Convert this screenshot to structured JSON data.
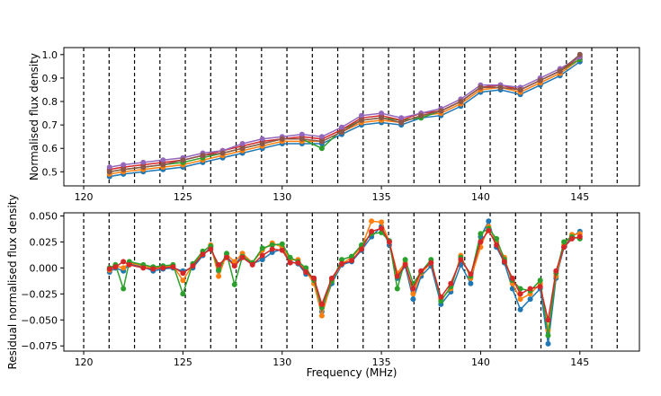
{
  "chart_data": [
    {
      "type": "line",
      "ylabel": "Normalised flux density",
      "xlim": [
        119,
        148
      ],
      "ylim": [
        0.44,
        1.03
      ],
      "x_ticks": [
        120,
        125,
        130,
        135,
        140,
        145
      ],
      "x_tick_labels": [
        "120",
        "125",
        "130",
        "135",
        "140",
        "145"
      ],
      "y_ticks": [
        0.5,
        0.6,
        0.7,
        0.8,
        0.9,
        1.0
      ],
      "y_tick_labels": [
        "0.5",
        "0.6",
        "0.7",
        "0.8",
        "0.9",
        "1.0"
      ],
      "vlines": [
        120,
        121.28,
        122.56,
        123.84,
        125.12,
        126.4,
        127.68,
        128.96,
        130.24,
        131.52,
        132.8,
        134.08,
        135.36,
        136.64,
        137.92,
        139.2,
        140.48,
        141.76,
        143.04,
        144.32,
        145.6,
        146.88
      ],
      "grid": false,
      "series": [
        {
          "color": "#1f77b4",
          "x": [
            121.3,
            122.0,
            123.0,
            124.0,
            125.0,
            126.0,
            127.0,
            128.0,
            129.0,
            130.0,
            131.0,
            132.0,
            133.0,
            134.0,
            135.0,
            136.0,
            137.0,
            138.0,
            139.0,
            140.0,
            141.0,
            142.0,
            143.0,
            144.0,
            145.0
          ],
          "y": [
            0.48,
            0.49,
            0.5,
            0.51,
            0.52,
            0.54,
            0.56,
            0.58,
            0.6,
            0.62,
            0.62,
            0.62,
            0.66,
            0.7,
            0.71,
            0.7,
            0.73,
            0.74,
            0.78,
            0.84,
            0.85,
            0.83,
            0.87,
            0.91,
            0.97
          ]
        },
        {
          "color": "#ff7f0e",
          "x": [
            121.3,
            122.0,
            123.0,
            124.0,
            125.0,
            126.0,
            127.0,
            128.0,
            129.0,
            130.0,
            131.0,
            132.0,
            133.0,
            134.0,
            135.0,
            136.0,
            137.0,
            138.0,
            139.0,
            140.0,
            141.0,
            142.0,
            143.0,
            144.0,
            145.0
          ],
          "y": [
            0.49,
            0.5,
            0.51,
            0.52,
            0.53,
            0.55,
            0.57,
            0.59,
            0.61,
            0.63,
            0.63,
            0.63,
            0.67,
            0.71,
            0.72,
            0.71,
            0.74,
            0.75,
            0.79,
            0.85,
            0.86,
            0.84,
            0.88,
            0.92,
            0.98
          ]
        },
        {
          "color": "#2ca02c",
          "x": [
            121.3,
            122.0,
            123.0,
            124.0,
            125.0,
            126.0,
            127.0,
            128.0,
            129.0,
            130.0,
            131.0,
            132.0,
            133.0,
            134.0,
            135.0,
            136.0,
            137.0,
            138.0,
            139.0,
            140.0,
            141.0,
            142.0,
            143.0,
            144.0,
            145.0
          ],
          "y": [
            0.5,
            0.51,
            0.52,
            0.53,
            0.54,
            0.56,
            0.58,
            0.6,
            0.62,
            0.64,
            0.64,
            0.6,
            0.68,
            0.72,
            0.73,
            0.72,
            0.73,
            0.76,
            0.8,
            0.86,
            0.87,
            0.85,
            0.89,
            0.93,
            0.98
          ]
        },
        {
          "color": "#d62728",
          "x": [
            121.3,
            122.0,
            123.0,
            124.0,
            125.0,
            126.0,
            127.0,
            128.0,
            129.0,
            130.0,
            131.0,
            132.0,
            133.0,
            134.0,
            135.0,
            136.0,
            137.0,
            138.0,
            139.0,
            140.0,
            141.0,
            142.0,
            143.0,
            144.0,
            145.0
          ],
          "y": [
            0.51,
            0.52,
            0.53,
            0.54,
            0.55,
            0.57,
            0.59,
            0.61,
            0.63,
            0.64,
            0.65,
            0.64,
            0.68,
            0.73,
            0.74,
            0.72,
            0.75,
            0.76,
            0.8,
            0.86,
            0.87,
            0.85,
            0.89,
            0.93,
            0.99
          ]
        },
        {
          "color": "#9467bd",
          "x": [
            121.3,
            122.0,
            123.0,
            124.0,
            125.0,
            126.0,
            127.0,
            128.0,
            129.0,
            130.0,
            131.0,
            132.0,
            133.0,
            134.0,
            135.0,
            136.0,
            137.0,
            138.0,
            139.0,
            140.0,
            141.0,
            142.0,
            143.0,
            144.0,
            145.0
          ],
          "y": [
            0.52,
            0.53,
            0.54,
            0.55,
            0.56,
            0.58,
            0.59,
            0.62,
            0.64,
            0.65,
            0.66,
            0.65,
            0.69,
            0.74,
            0.75,
            0.73,
            0.75,
            0.77,
            0.81,
            0.87,
            0.87,
            0.86,
            0.9,
            0.94,
            0.99
          ]
        },
        {
          "color": "#8c564b",
          "x": [
            121.3,
            122.0,
            123.0,
            124.0,
            125.0,
            126.0,
            127.0,
            128.0,
            129.0,
            130.0,
            131.0,
            132.0,
            133.0,
            134.0,
            135.0,
            136.0,
            137.0,
            138.0,
            139.0,
            140.0,
            141.0,
            142.0,
            143.0,
            144.0,
            145.0
          ],
          "y": [
            0.5,
            0.51,
            0.52,
            0.53,
            0.55,
            0.57,
            0.58,
            0.6,
            0.62,
            0.64,
            0.64,
            0.63,
            0.67,
            0.72,
            0.73,
            0.71,
            0.74,
            0.76,
            0.8,
            0.86,
            0.86,
            0.85,
            0.89,
            0.93,
            1.0
          ]
        }
      ]
    },
    {
      "type": "line",
      "xlabel": "Frequency (MHz)",
      "ylabel": "Residual normalised flux density",
      "xlim": [
        119,
        148
      ],
      "ylim": [
        -0.08,
        0.053
      ],
      "x_ticks": [
        120,
        125,
        130,
        135,
        140,
        145
      ],
      "x_tick_labels": [
        "120",
        "125",
        "130",
        "135",
        "140",
        "145"
      ],
      "y_ticks": [
        0.05,
        0.025,
        0.0,
        -0.025,
        -0.05,
        -0.075
      ],
      "y_tick_labels": [
        "0.050",
        "0.025",
        "0.000",
        "−0.025",
        "−0.050",
        "−0.075"
      ],
      "vlines": [
        120,
        121.28,
        122.56,
        123.84,
        125.12,
        126.4,
        127.68,
        128.96,
        130.24,
        131.52,
        132.8,
        134.08,
        135.36,
        136.64,
        137.92,
        139.2,
        140.48,
        141.76,
        143.04,
        144.32,
        145.6,
        146.88
      ],
      "grid": false,
      "series": [
        {
          "color": "#1f77b4",
          "x": [
            121.3,
            121.6,
            122.0,
            122.3,
            123.0,
            123.5,
            124.0,
            124.5,
            125.0,
            125.5,
            126.0,
            126.4,
            126.8,
            127.2,
            127.6,
            128.0,
            128.5,
            129.0,
            129.5,
            130.0,
            130.4,
            130.8,
            131.2,
            131.6,
            132.0,
            132.5,
            133.0,
            133.5,
            134.0,
            134.5,
            135.0,
            135.4,
            135.8,
            136.2,
            136.6,
            137.0,
            137.5,
            138.0,
            138.5,
            139.0,
            139.5,
            140.0,
            140.4,
            140.8,
            141.2,
            141.6,
            142.0,
            142.5,
            143.0,
            143.4,
            143.8,
            144.2,
            144.6,
            145.0
          ],
          "y": [
            -0.004,
            0.0,
            -0.003,
            0.004,
            0.001,
            -0.003,
            -0.001,
            0.0,
            -0.003,
            0.0,
            0.012,
            0.02,
            -0.003,
            0.011,
            0.003,
            0.012,
            0.004,
            0.008,
            0.015,
            0.018,
            0.006,
            0.004,
            -0.006,
            -0.01,
            -0.042,
            -0.015,
            0.003,
            0.006,
            0.017,
            0.03,
            0.04,
            0.022,
            -0.01,
            0.002,
            -0.03,
            -0.008,
            0.002,
            -0.035,
            -0.023,
            0.003,
            -0.015,
            0.03,
            0.045,
            0.02,
            0.005,
            -0.02,
            -0.04,
            -0.03,
            -0.02,
            -0.073,
            -0.01,
            0.02,
            0.03,
            0.035
          ]
        },
        {
          "color": "#ff7f0e",
          "x": [
            121.3,
            121.6,
            122.0,
            122.3,
            123.0,
            123.5,
            124.0,
            124.5,
            125.0,
            125.5,
            126.0,
            126.4,
            126.8,
            127.2,
            127.6,
            128.0,
            128.5,
            129.0,
            129.5,
            130.0,
            130.4,
            130.8,
            131.2,
            131.6,
            132.0,
            132.5,
            133.0,
            133.5,
            134.0,
            134.5,
            135.0,
            135.4,
            135.8,
            136.2,
            136.6,
            137.0,
            137.5,
            138.0,
            138.5,
            139.0,
            139.5,
            140.0,
            140.4,
            140.8,
            141.2,
            141.6,
            142.0,
            142.5,
            143.0,
            143.4,
            143.8,
            144.2,
            144.6,
            145.0
          ],
          "y": [
            -0.002,
            0.002,
            0.0,
            0.005,
            0.002,
            0.0,
            0.001,
            0.002,
            -0.012,
            0.003,
            0.015,
            0.022,
            -0.008,
            0.013,
            0.006,
            0.014,
            0.005,
            0.017,
            0.024,
            0.02,
            0.008,
            0.008,
            -0.003,
            -0.015,
            -0.046,
            -0.012,
            0.004,
            0.01,
            0.02,
            0.045,
            0.044,
            0.025,
            -0.005,
            0.005,
            -0.025,
            -0.005,
            0.005,
            -0.03,
            -0.02,
            0.012,
            -0.01,
            0.02,
            0.04,
            0.025,
            0.01,
            -0.015,
            -0.03,
            -0.025,
            -0.015,
            -0.06,
            -0.008,
            0.022,
            0.032,
            0.033
          ]
        },
        {
          "color": "#2ca02c",
          "x": [
            121.3,
            121.6,
            122.0,
            122.3,
            123.0,
            123.5,
            124.0,
            124.5,
            125.0,
            125.5,
            126.0,
            126.4,
            126.8,
            127.2,
            127.6,
            128.0,
            128.5,
            129.0,
            129.5,
            130.0,
            130.4,
            130.8,
            131.2,
            131.6,
            132.0,
            132.5,
            133.0,
            133.5,
            134.0,
            134.5,
            135.0,
            135.4,
            135.8,
            136.2,
            136.6,
            137.0,
            137.5,
            138.0,
            138.5,
            139.0,
            139.5,
            140.0,
            140.4,
            140.8,
            141.2,
            141.6,
            142.0,
            142.5,
            143.0,
            143.4,
            143.8,
            144.2,
            144.6,
            145.0
          ],
          "y": [
            0.0,
            0.003,
            -0.02,
            0.006,
            0.003,
            0.001,
            0.002,
            0.003,
            -0.025,
            0.004,
            0.016,
            0.021,
            -0.002,
            0.014,
            -0.016,
            0.011,
            0.005,
            0.019,
            0.022,
            0.023,
            0.01,
            0.006,
            0.0,
            -0.012,
            -0.038,
            -0.013,
            0.008,
            0.011,
            0.022,
            0.033,
            0.034,
            0.026,
            -0.02,
            0.008,
            -0.015,
            -0.004,
            0.008,
            -0.032,
            -0.018,
            0.01,
            -0.008,
            0.033,
            0.038,
            0.028,
            0.008,
            -0.012,
            -0.02,
            -0.022,
            -0.012,
            -0.065,
            -0.005,
            0.025,
            0.03,
            0.028
          ]
        },
        {
          "color": "#d62728",
          "x": [
            121.3,
            121.6,
            122.0,
            122.3,
            123.0,
            123.5,
            124.0,
            124.5,
            125.0,
            125.5,
            126.0,
            126.4,
            126.8,
            127.2,
            127.6,
            128.0,
            128.5,
            129.0,
            129.5,
            130.0,
            130.4,
            130.8,
            131.2,
            131.6,
            132.0,
            132.5,
            133.0,
            133.5,
            134.0,
            134.5,
            135.0,
            135.4,
            135.8,
            136.2,
            136.6,
            137.0,
            137.5,
            138.0,
            138.5,
            139.0,
            139.5,
            140.0,
            140.4,
            140.8,
            141.2,
            141.6,
            142.0,
            142.5,
            143.0,
            143.4,
            143.8,
            144.2,
            144.6,
            145.0
          ],
          "y": [
            -0.001,
            0.001,
            0.006,
            0.003,
            0.0,
            -0.001,
            0.0,
            0.001,
            -0.005,
            0.002,
            0.013,
            0.018,
            0.003,
            0.01,
            0.002,
            0.01,
            0.003,
            0.012,
            0.018,
            0.017,
            0.005,
            0.005,
            -0.004,
            -0.01,
            -0.035,
            -0.01,
            0.004,
            0.007,
            0.018,
            0.035,
            0.038,
            0.025,
            -0.008,
            0.003,
            -0.02,
            -0.003,
            0.005,
            -0.028,
            -0.015,
            0.008,
            -0.006,
            0.025,
            0.036,
            0.022,
            0.006,
            -0.01,
            -0.025,
            -0.02,
            -0.018,
            -0.05,
            -0.003,
            0.02,
            0.028,
            0.03
          ]
        }
      ]
    }
  ]
}
